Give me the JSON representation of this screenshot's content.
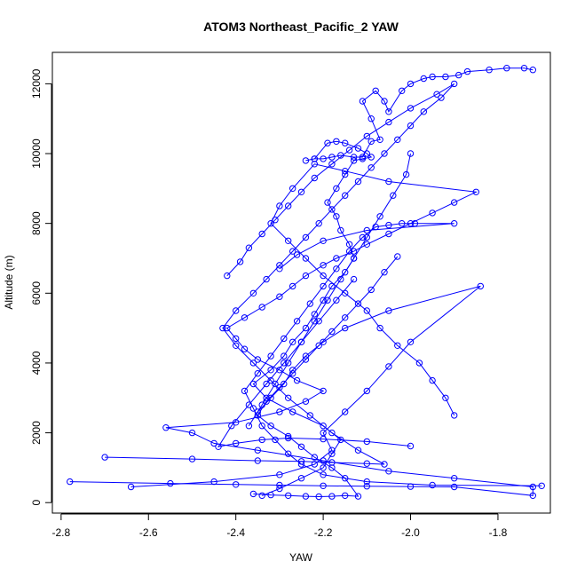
{
  "chart_data": {
    "type": "line",
    "title": "ATOM3 Northeast_Pacific_2 YAW",
    "xlabel": "YAW",
    "ylabel": "Altitude (m)",
    "xlim": [
      -2.82,
      -1.68
    ],
    "ylim": [
      -300,
      12900
    ],
    "xticks": [
      -2.8,
      -2.6,
      -2.4,
      -2.2,
      -2.0,
      -1.8
    ],
    "xtick_labels": [
      "-2.8",
      "-2.6",
      "-2.4",
      "-2.2",
      "-2.0",
      "-1.8"
    ],
    "yticks": [
      0,
      2000,
      4000,
      6000,
      8000,
      10000,
      12000
    ],
    "ytick_labels": [
      "0",
      "2000",
      "4000",
      "6000",
      "8000",
      "10000",
      "12000"
    ],
    "grid": false,
    "series_color": "#0000ff",
    "marker": "open-circle",
    "series": [
      {
        "x": [
          -2.34,
          -2.3,
          -2.25,
          -2.2,
          -2.18,
          -2.16,
          -2.2,
          -2.27,
          -2.33,
          -2.36,
          -2.32,
          -2.29,
          -2.27,
          -2.24,
          -2.22,
          -2.2,
          -2.18,
          -2.15,
          -2.13,
          -2.14,
          -2.16,
          -2.17,
          -2.19,
          -2.17,
          -2.15,
          -2.13,
          -2.11,
          -2.09,
          -2.1,
          -2.12,
          -2.15,
          -2.17,
          -2.19,
          -2.22,
          -2.24,
          -2.22,
          -2.2,
          -2.18,
          -2.16,
          -2.13,
          -2.11,
          -2.09,
          -2.07,
          -2.09,
          -2.11,
          -2.08,
          -2.06,
          -2.05,
          -2.02,
          -2.0,
          -1.97,
          -1.95,
          -1.92,
          -1.89,
          -1.87,
          -1.82,
          -1.78,
          -1.74,
          -1.72
        ],
        "y": [
          200,
          400,
          700,
          1000,
          1400,
          1800,
          2200,
          2600,
          3000,
          3400,
          3800,
          4200,
          4600,
          5000,
          5400,
          5800,
          6200,
          6600,
          7000,
          7400,
          7800,
          8200,
          8600,
          9000,
          9400,
          9800,
          9850,
          9900,
          10000,
          10150,
          10300,
          10350,
          10300,
          9850,
          9800,
          9850,
          9850,
          9900,
          9950,
          9900,
          9900,
          10350,
          10400,
          11000,
          11500,
          11800,
          11500,
          11200,
          11800,
          12000,
          12150,
          12200,
          12200,
          12250,
          12350,
          12400,
          12450,
          12450,
          12400
        ]
      },
      {
        "x": [
          -2.78,
          -2.55,
          -2.4,
          -2.3,
          -2.2,
          -2.1,
          -2.0,
          -1.9,
          -1.72,
          -1.72,
          -1.9,
          -2.05,
          -2.2,
          -2.35,
          -2.45,
          -2.5,
          -2.56,
          -2.4,
          -2.3,
          -2.24,
          -2.2,
          -2.26,
          -2.3,
          -2.35,
          -2.38,
          -2.4,
          -2.42,
          -2.38,
          -2.34,
          -2.3,
          -2.27,
          -2.24,
          -2.2,
          -2.17,
          -2.13,
          -2.1,
          -2.05,
          -2.0,
          -1.95,
          -1.9,
          -1.85,
          -2.05,
          -2.15,
          -2.22,
          -2.27,
          -2.3,
          -2.32,
          -2.28,
          -2.24,
          -2.2,
          -2.15,
          -2.1,
          -2.07,
          -2.03,
          -1.98,
          -1.95,
          -1.92,
          -1.9
        ],
        "y": [
          600,
          550,
          520,
          500,
          480,
          470,
          460,
          450,
          200,
          450,
          700,
          900,
          1200,
          1500,
          1700,
          2000,
          2150,
          2300,
          2600,
          2900,
          3200,
          3500,
          3800,
          4100,
          4400,
          4700,
          5000,
          5300,
          5600,
          5900,
          6200,
          6500,
          6800,
          7000,
          7200,
          7400,
          7700,
          8000,
          8300,
          8600,
          8900,
          9200,
          9500,
          9700,
          9000,
          8500,
          8000,
          7500,
          7000,
          6500,
          6000,
          5500,
          5000,
          4500,
          4000,
          3500,
          3000,
          2500
        ]
      },
      {
        "x": [
          -2.7,
          -2.5,
          -2.35,
          -2.25,
          -2.18,
          -2.1,
          -2.06,
          -2.12,
          -2.18,
          -2.23,
          -2.28,
          -2.32,
          -2.36,
          -2.4,
          -2.43,
          -2.4,
          -2.36,
          -2.33,
          -2.3,
          -2.27,
          -2.24,
          -2.21,
          -2.18,
          -2.15,
          -2.12,
          -2.09,
          -2.06,
          -2.03,
          -2.0,
          -1.97,
          -1.93,
          -1.9,
          -1.94,
          -2.0,
          -2.05,
          -2.1,
          -2.14,
          -2.18,
          -2.22,
          -2.25,
          -2.28,
          -2.31,
          -2.34,
          -2.37,
          -2.39,
          -2.42
        ],
        "y": [
          1300,
          1250,
          1200,
          1180,
          1150,
          1120,
          1100,
          1500,
          2000,
          2500,
          3000,
          3500,
          4000,
          4500,
          5000,
          5500,
          6000,
          6400,
          6800,
          7200,
          7600,
          8000,
          8400,
          8800,
          9200,
          9600,
          10000,
          10400,
          10800,
          11200,
          11600,
          12000,
          11700,
          11300,
          10900,
          10500,
          10100,
          9700,
          9300,
          8900,
          8500,
          8100,
          7700,
          7300,
          6900,
          6500
        ]
      },
      {
        "x": [
          -2.64,
          -2.45,
          -2.3,
          -2.22,
          -2.18,
          -2.2,
          -2.15,
          -2.1,
          -2.05,
          -2.0,
          -1.84,
          -2.05,
          -2.15,
          -2.2,
          -2.24,
          -2.27,
          -2.29,
          -2.32,
          -2.35,
          -2.37,
          -2.34,
          -2.31,
          -2.28,
          -2.25,
          -2.22,
          -2.19,
          -2.16,
          -2.13,
          -2.1,
          -2.07,
          -2.04,
          -2.01,
          -2.0
        ],
        "y": [
          450,
          600,
          800,
          1100,
          1500,
          2000,
          2600,
          3200,
          3900,
          4600,
          6200,
          5500,
          5000,
          4600,
          4200,
          3800,
          3400,
          3000,
          2600,
          2200,
          2800,
          3400,
          4000,
          4600,
          5200,
          5800,
          6400,
          7000,
          7600,
          8200,
          8800,
          9400,
          10000
        ]
      },
      {
        "x": [
          -1.7,
          -1.95,
          -2.1,
          -2.2,
          -2.25,
          -2.28,
          -2.31,
          -2.34,
          -2.36,
          -2.38,
          -2.35,
          -2.32,
          -2.29,
          -2.26,
          -2.23,
          -2.2,
          -2.17,
          -2.14,
          -2.11,
          -2.08,
          -2.05,
          -2.02,
          -1.99,
          -1.9,
          -2.1,
          -2.2,
          -2.26,
          -2.3
        ],
        "y": [
          480,
          500,
          600,
          800,
          1100,
          1400,
          1800,
          2200,
          2700,
          3200,
          3700,
          4200,
          4700,
          5200,
          5700,
          6200,
          6700,
          7200,
          7600,
          7900,
          7950,
          8000,
          8000,
          8000,
          7800,
          7500,
          7100,
          6700
        ]
      },
      {
        "x": [
          -2.36,
          -2.32,
          -2.28,
          -2.24,
          -2.21,
          -2.18,
          -2.15,
          -2.12,
          -2.15,
          -2.18,
          -2.22,
          -2.25,
          -2.28,
          -2.32,
          -2.35,
          -2.33,
          -2.3,
          -2.27,
          -2.24,
          -2.21,
          -2.18,
          -2.15,
          -2.12,
          -2.09,
          -2.06,
          -2.03
        ],
        "y": [
          250,
          220,
          200,
          180,
          170,
          180,
          200,
          180,
          700,
          1000,
          1300,
          1600,
          1900,
          2200,
          2500,
          2900,
          3300,
          3700,
          4100,
          4500,
          4900,
          5300,
          5700,
          6100,
          6600,
          7050
        ]
      },
      {
        "x": [
          -2.0,
          -2.1,
          -2.2,
          -2.28,
          -2.34,
          -2.4,
          -2.44,
          -2.41,
          -2.37,
          -2.33,
          -2.29,
          -2.25,
          -2.21,
          -2.17,
          -2.13
        ],
        "y": [
          1620,
          1750,
          1820,
          1850,
          1800,
          1700,
          1600,
          2200,
          2800,
          3400,
          4000,
          4600,
          5200,
          5800,
          6400
        ]
      }
    ]
  }
}
